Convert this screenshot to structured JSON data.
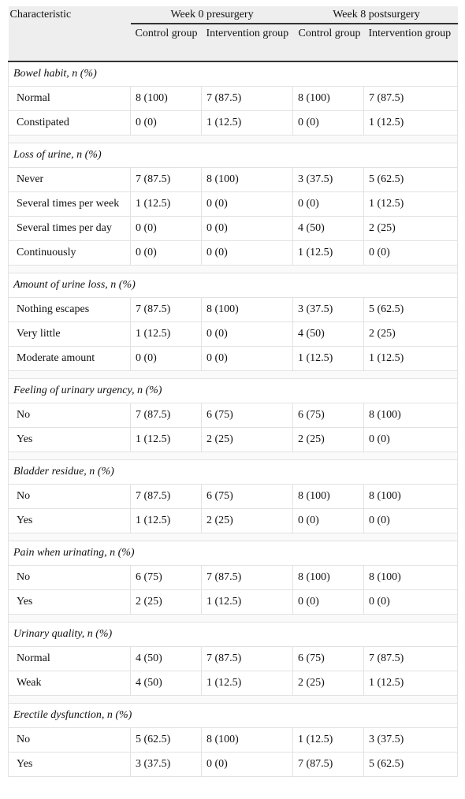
{
  "header": {
    "characteristic": "Characteristic",
    "groups": [
      "Week 0 presurgery",
      "Week 8 postsurgery"
    ],
    "subheaders": [
      "Control group",
      "Intervention group",
      "Control group",
      "Intervention group"
    ]
  },
  "sections": [
    {
      "title": "Bowel habit, n (%)",
      "rows": [
        [
          "Normal",
          "8 (100)",
          "7 (87.5)",
          "8 (100)",
          "7 (87.5)"
        ],
        [
          "Constipated",
          "0 (0)",
          "1 (12.5)",
          "0 (0)",
          "1 (12.5)"
        ]
      ]
    },
    {
      "title": "Loss of urine, n (%)",
      "rows": [
        [
          "Never",
          "7 (87.5)",
          "8 (100)",
          "3 (37.5)",
          "5 (62.5)"
        ],
        [
          "Several times per week",
          "1 (12.5)",
          "0 (0)",
          "0 (0)",
          "1 (12.5)"
        ],
        [
          "Several times per day",
          "0 (0)",
          "0 (0)",
          "4 (50)",
          "2 (25)"
        ],
        [
          "Continuously",
          "0 (0)",
          "0 (0)",
          "1 (12.5)",
          "0 (0)"
        ]
      ]
    },
    {
      "title": "Amount of urine loss, n (%)",
      "rows": [
        [
          "Nothing escapes",
          "7 (87.5)",
          "8 (100)",
          "3 (37.5)",
          "5 (62.5)"
        ],
        [
          "Very little",
          "1 (12.5)",
          "0 (0)",
          "4 (50)",
          "2 (25)"
        ],
        [
          "Moderate amount",
          "0 (0)",
          "0 (0)",
          "1 (12.5)",
          "1 (12.5)"
        ]
      ]
    },
    {
      "title": "Feeling of urinary urgency, n (%)",
      "rows": [
        [
          "No",
          "7 (87.5)",
          "6 (75)",
          "6 (75)",
          "8 (100)"
        ],
        [
          "Yes",
          "1 (12.5)",
          "2 (25)",
          "2 (25)",
          "0 (0)"
        ]
      ]
    },
    {
      "title": "Bladder residue, n (%)",
      "rows": [
        [
          "No",
          "7 (87.5)",
          "6 (75)",
          "8 (100)",
          "8 (100)"
        ],
        [
          "Yes",
          "1 (12.5)",
          "2 (25)",
          "0 (0)",
          "0 (0)"
        ]
      ]
    },
    {
      "title": "Pain when urinating, n (%)",
      "rows": [
        [
          "No",
          "6 (75)",
          "7 (87.5)",
          "8 (100)",
          "8 (100)"
        ],
        [
          "Yes",
          "2 (25)",
          "1 (12.5)",
          "0 (0)",
          "0 (0)"
        ]
      ]
    },
    {
      "title": "Urinary quality, n (%)",
      "rows": [
        [
          "Normal",
          "4 (50)",
          "7 (87.5)",
          "6 (75)",
          "7 (87.5)"
        ],
        [
          "Weak",
          "4 (50)",
          "1 (12.5)",
          "2 (25)",
          "1 (12.5)"
        ]
      ]
    },
    {
      "title": "Erectile dysfunction, n (%)",
      "rows": [
        [
          "No",
          "5 (62.5)",
          "8 (100)",
          "1 (12.5)",
          "3 (37.5)"
        ],
        [
          "Yes",
          "3 (37.5)",
          "0 (0)",
          "7 (87.5)",
          "5 (62.5)"
        ]
      ]
    }
  ]
}
